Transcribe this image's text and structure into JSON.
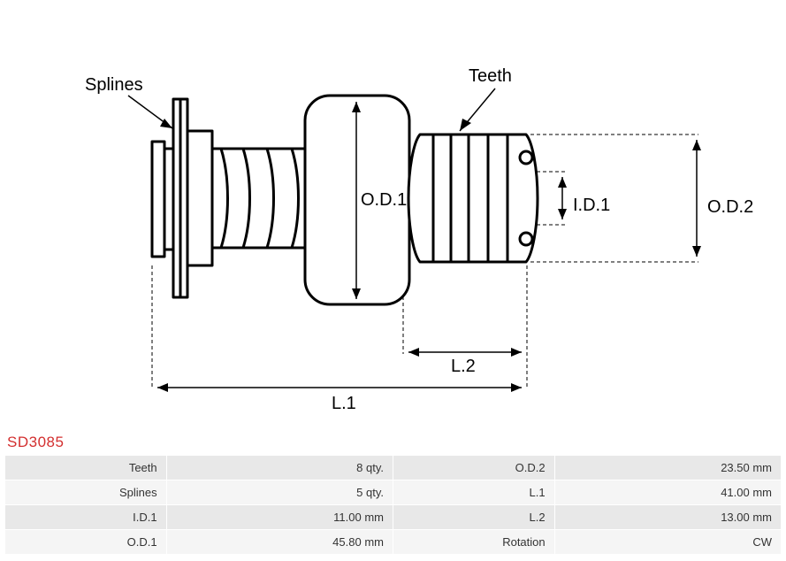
{
  "part_number": "SD3085",
  "diagram": {
    "labels": {
      "splines": "Splines",
      "teeth": "Teeth",
      "od1": "O.D.1",
      "od2": "O.D.2",
      "id1": "I.D.1",
      "l1": "L.1",
      "l2": "L.2"
    },
    "stroke_color": "#000000",
    "stroke_width_main": 3,
    "stroke_width_dim": 1.2,
    "text_color": "#000000",
    "font_size_label": 20,
    "background": "#ffffff"
  },
  "specs": {
    "rows": [
      {
        "label_left": "Teeth",
        "value_left": "8 qty.",
        "label_right": "O.D.2",
        "value_right": "23.50 mm"
      },
      {
        "label_left": "Splines",
        "value_left": "5 qty.",
        "label_right": "L.1",
        "value_right": "41.00 mm"
      },
      {
        "label_left": "I.D.1",
        "value_left": "11.00 mm",
        "label_right": "L.2",
        "value_right": "13.00 mm"
      },
      {
        "label_left": "O.D.1",
        "value_left": "45.80 mm",
        "label_right": "Rotation",
        "value_right": "CW"
      }
    ],
    "row_bg_even": "#e8e8e8",
    "row_bg_odd": "#f5f5f5",
    "text_color": "#333333",
    "font_size": 13
  }
}
